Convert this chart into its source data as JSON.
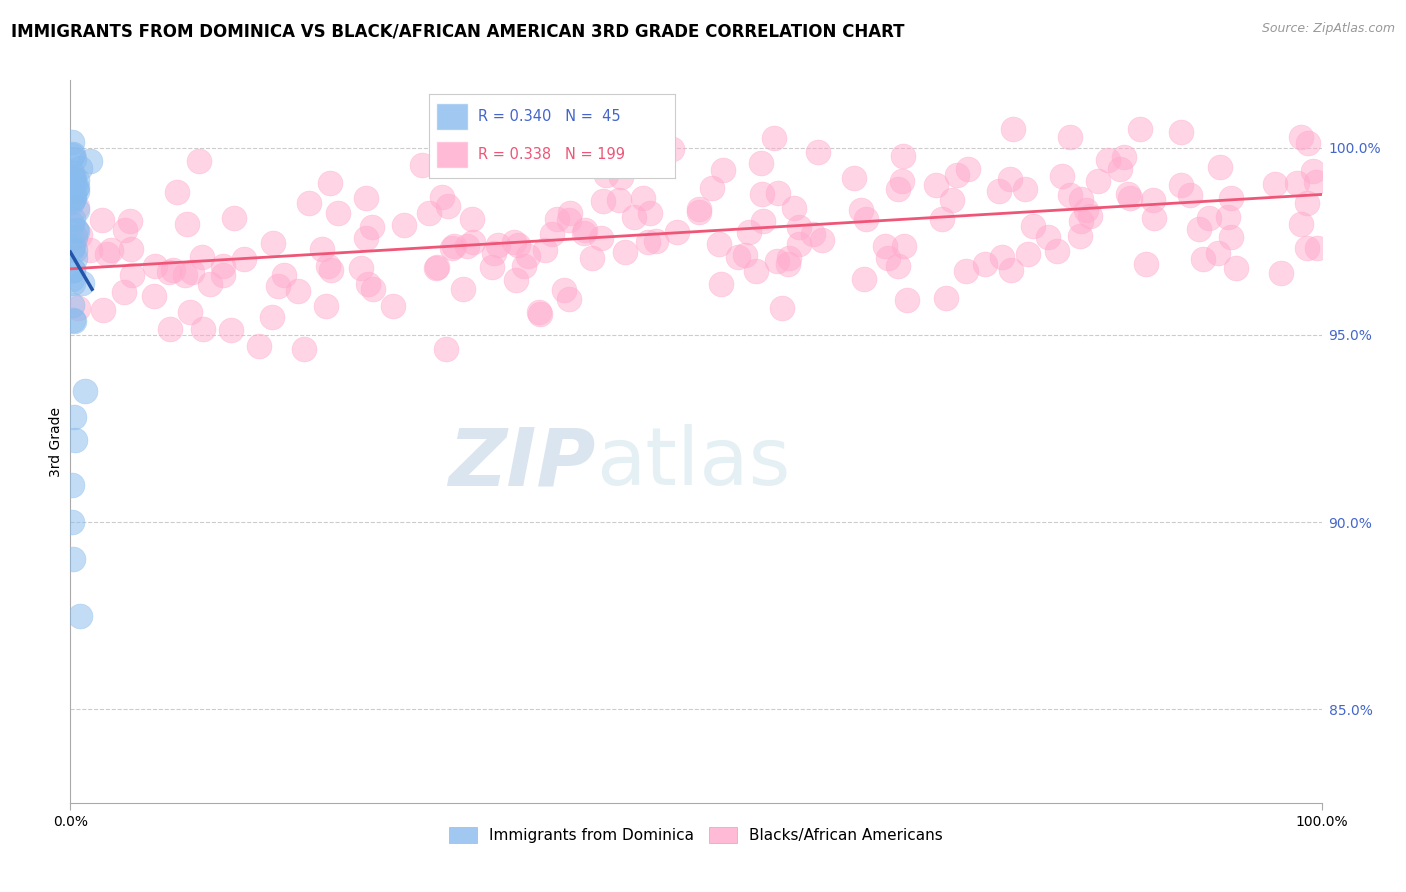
{
  "title": "IMMIGRANTS FROM DOMINICA VS BLACK/AFRICAN AMERICAN 3RD GRADE CORRELATION CHART",
  "source": "Source: ZipAtlas.com",
  "ylabel": "3rd Grade",
  "xmin": 0.0,
  "xmax": 1.0,
  "ymin": 0.825,
  "ymax": 1.018,
  "blue_R": 0.34,
  "blue_N": 45,
  "pink_R": 0.338,
  "pink_N": 199,
  "blue_color": "#88BBEE",
  "pink_color": "#FFAACC",
  "blue_line_color": "#2255AA",
  "pink_line_color": "#EE5577",
  "legend_label_blue": "Immigrants from Dominica",
  "legend_label_pink": "Blacks/African Americans",
  "watermark_zip": "ZIP",
  "watermark_atlas": "atlas",
  "title_fontsize": 12,
  "axis_label_fontsize": 10,
  "tick_label_fontsize": 10,
  "legend_fontsize": 11,
  "ytick_vals": [
    0.85,
    0.9,
    0.95,
    1.0
  ],
  "ytick_labels": [
    "85.0%",
    "90.0%",
    "95.0%",
    "100.0%"
  ]
}
